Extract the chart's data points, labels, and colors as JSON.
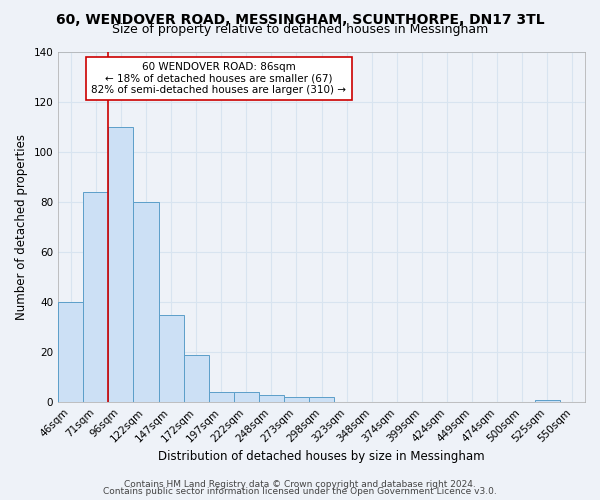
{
  "title": "60, WENDOVER ROAD, MESSINGHAM, SCUNTHORPE, DN17 3TL",
  "subtitle": "Size of property relative to detached houses in Messingham",
  "xlabel": "Distribution of detached houses by size in Messingham",
  "ylabel": "Number of detached properties",
  "bar_labels": [
    "46sqm",
    "71sqm",
    "96sqm",
    "122sqm",
    "147sqm",
    "172sqm",
    "197sqm",
    "222sqm",
    "248sqm",
    "273sqm",
    "298sqm",
    "323sqm",
    "348sqm",
    "374sqm",
    "399sqm",
    "424sqm",
    "449sqm",
    "474sqm",
    "500sqm",
    "525sqm",
    "550sqm"
  ],
  "bar_values": [
    40,
    84,
    110,
    80,
    35,
    19,
    4,
    4,
    3,
    2,
    2,
    0,
    0,
    0,
    0,
    0,
    0,
    0,
    0,
    1,
    0
  ],
  "bar_color": "#cce0f5",
  "bar_edge_color": "#5b9ec9",
  "vline_x": 1.5,
  "vline_color": "#cc0000",
  "ylim": [
    0,
    140
  ],
  "yticks": [
    0,
    20,
    40,
    60,
    80,
    100,
    120,
    140
  ],
  "annotation_box_text": "60 WENDOVER ROAD: 86sqm\n← 18% of detached houses are smaller (67)\n82% of semi-detached houses are larger (310) →",
  "footer_line1": "Contains HM Land Registry data © Crown copyright and database right 2024.",
  "footer_line2": "Contains public sector information licensed under the Open Government Licence v3.0.",
  "background_color": "#eef2f8",
  "grid_color": "#d8e4f0",
  "title_fontsize": 10,
  "subtitle_fontsize": 9,
  "axis_label_fontsize": 8.5,
  "tick_fontsize": 7.5,
  "footer_fontsize": 6.5
}
